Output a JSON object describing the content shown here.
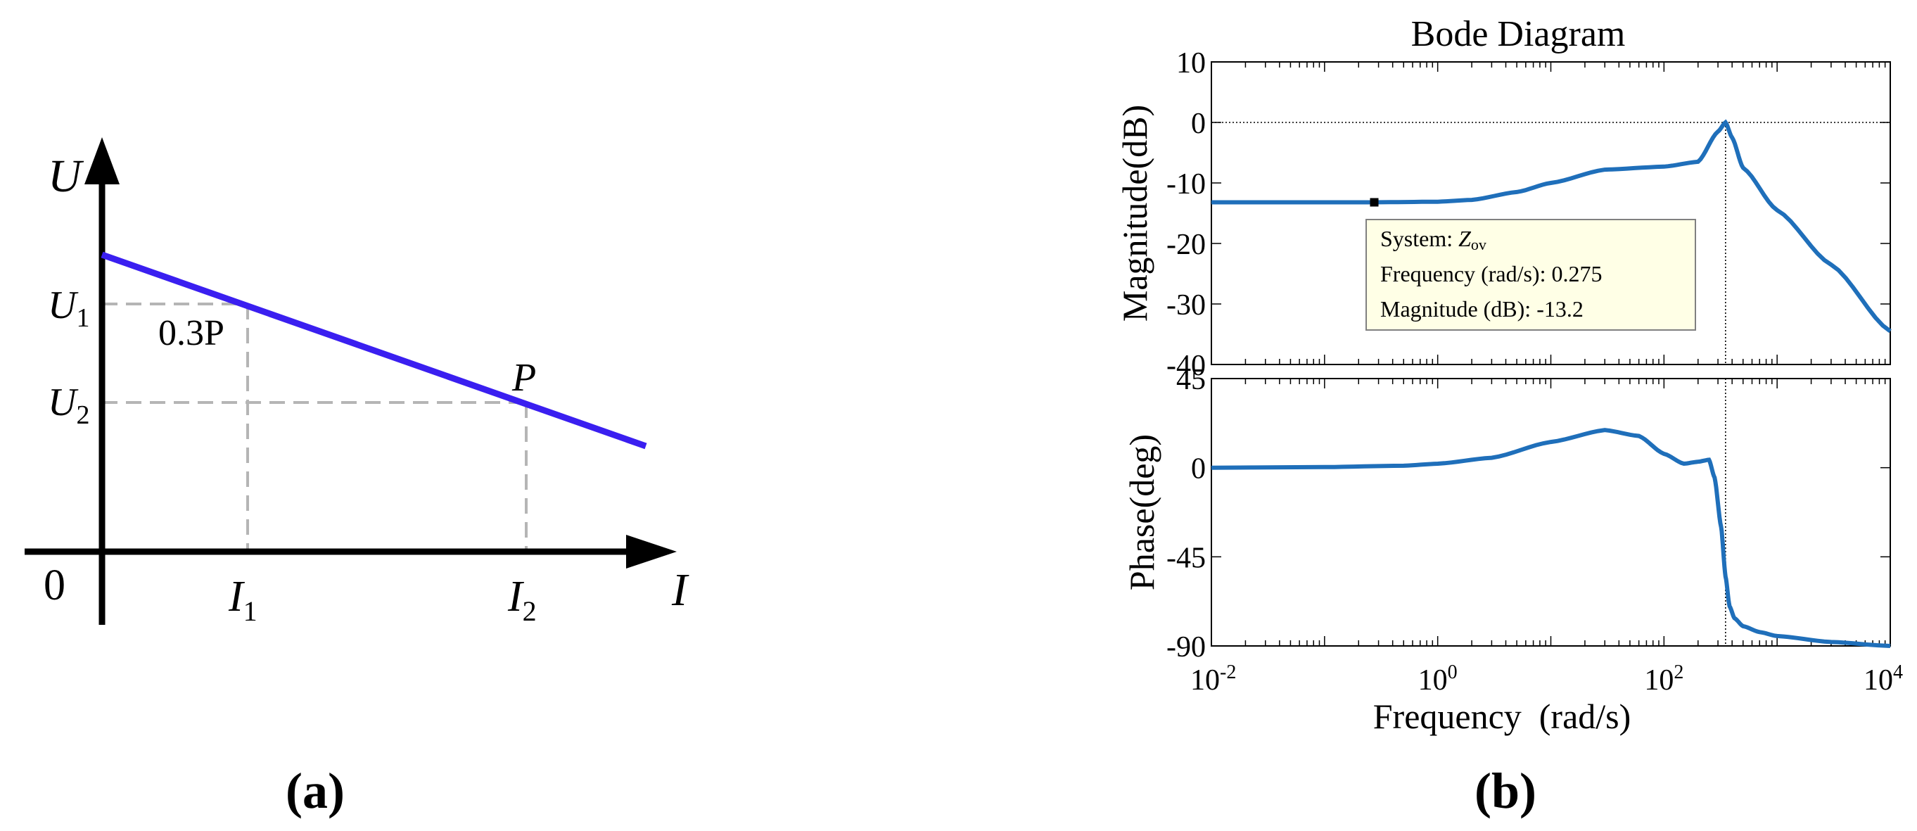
{
  "panel_a": {
    "caption": "(a)",
    "y_axis_label": "U",
    "x_axis_label": "I",
    "origin_label": "0",
    "u1_label": "U",
    "u1_sub": "1",
    "u2_label": "U",
    "u2_sub": "2",
    "i1_label": "I",
    "i1_sub": "1",
    "i2_label": "I",
    "i2_sub": "2",
    "point1_label": "0.3P",
    "point2_label": "P",
    "line_color": "#3a1ff0",
    "guide_color": "#b5b5b5"
  },
  "panel_b": {
    "caption": "(b)",
    "datatip": {
      "line1_prefix": "System: ",
      "line1_name": "Z",
      "line1_sub": "ov",
      "line2": "Frequency (rad/s): 0.275",
      "line3": "Magnitude (dB): -13.2"
    }
  },
  "chart_data": {
    "type": "line",
    "title": "Bode Diagram",
    "xlabel": "Frequency  (rad/s)",
    "x_scale": "log",
    "xlim": [
      0.01,
      10000
    ],
    "x_ticks": [
      {
        "base": "10",
        "exp": "-2"
      },
      {
        "base": "10",
        "exp": "0"
      },
      {
        "base": "10",
        "exp": "2"
      },
      {
        "base": "10",
        "exp": "4"
      }
    ],
    "series_color": "#1f6fba",
    "magnitude": {
      "ylabel": "Magnitude(dB)",
      "ylim": [
        -40,
        10
      ],
      "yticks": [
        "10",
        "0",
        "-10",
        "-20",
        "-30",
        "-40"
      ],
      "freq": [
        0.01,
        0.1,
        0.275,
        1,
        2,
        5,
        10,
        30,
        100,
        200,
        300,
        350,
        400,
        500,
        1000,
        3000,
        10000
      ],
      "values": [
        -13.2,
        -13.2,
        -13.2,
        -13.1,
        -12.8,
        -11.5,
        -10.0,
        -7.8,
        -7.3,
        -6.5,
        -1.5,
        0,
        -2.5,
        -7.5,
        -14.5,
        -23.5,
        -34.5
      ]
    },
    "phase": {
      "ylabel": "Phase(deg)",
      "ylim": [
        -90,
        45
      ],
      "yticks": [
        "45",
        "0",
        "-45",
        "-90"
      ],
      "freq": [
        0.01,
        0.1,
        0.5,
        1,
        3,
        10,
        30,
        60,
        100,
        150,
        200,
        250,
        280,
        320,
        350,
        380,
        420,
        500,
        700,
        1000,
        3000,
        10000
      ],
      "values": [
        0,
        0.3,
        1,
        2,
        5,
        13,
        19,
        16,
        7,
        2,
        3,
        4,
        -5,
        -30,
        -55,
        -70,
        -76,
        -80,
        -83,
        -85,
        -88,
        -90
      ]
    },
    "peak_frequency": 350,
    "datatip_point": {
      "x": 0.275,
      "y": -13.2
    }
  }
}
